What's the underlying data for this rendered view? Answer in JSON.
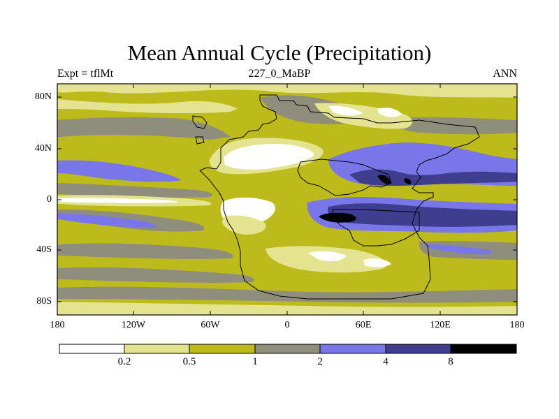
{
  "title": "Mean Annual Cycle (Precipitation)",
  "subtitle_left": "Expt = tflMt",
  "subtitle_center": "227_0_MaBP",
  "subtitle_right": "ANN",
  "y_axis": {
    "labels": [
      "80N",
      "40N",
      "0",
      "40S",
      "80S"
    ],
    "values": [
      80,
      40,
      0,
      -40,
      -80
    ],
    "range": [
      -90,
      90
    ]
  },
  "x_axis": {
    "labels": [
      "180",
      "120W",
      "60W",
      "0",
      "60E",
      "120E",
      "180"
    ],
    "values": [
      -180,
      -120,
      -60,
      0,
      60,
      120,
      180
    ],
    "range": [
      -180,
      180
    ]
  },
  "colorbar": {
    "levels": [
      "0.2",
      "0.5",
      "1",
      "2",
      "4",
      "8"
    ],
    "colors": [
      "#ffffff",
      "#e4e38f",
      "#bdbb1c",
      "#8f8d7b",
      "#7876e8",
      "#3e3d8e",
      "#000000"
    ]
  }
}
